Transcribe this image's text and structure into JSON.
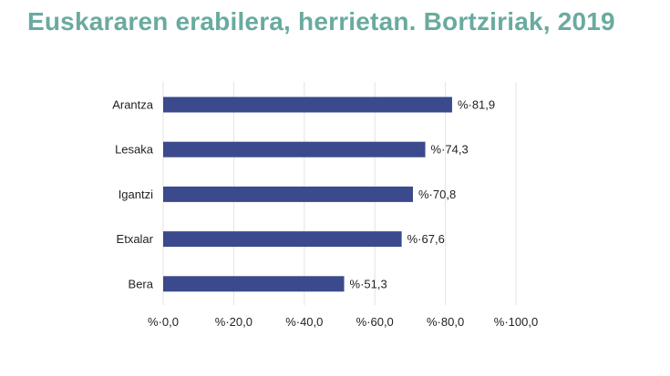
{
  "title": "Euskararen erabilera, herrietan. Bortziriak, 2019",
  "chart_data": {
    "type": "bar",
    "orientation": "horizontal",
    "categories": [
      "Arantza",
      "Lesaka",
      "Igantzi",
      "Etxalar",
      "Bera"
    ],
    "values": [
      81.9,
      74.3,
      70.8,
      67.6,
      51.3
    ],
    "data_labels": [
      "%·81,9",
      "%·74,3",
      "%·70,8",
      "%·67,6",
      "%·51,3"
    ],
    "xlim": [
      0,
      100
    ],
    "xticks": [
      0,
      20,
      40,
      60,
      80,
      100
    ],
    "xtick_labels": [
      "%·0,0",
      "%·20,0",
      "%·40,0",
      "%·60,0",
      "%·80,0",
      "%·100,0"
    ],
    "grid": true,
    "bar_color": "#3a4a8c",
    "gridline_color": "#e3e3e3",
    "title_color": "#6aaaa0"
  }
}
